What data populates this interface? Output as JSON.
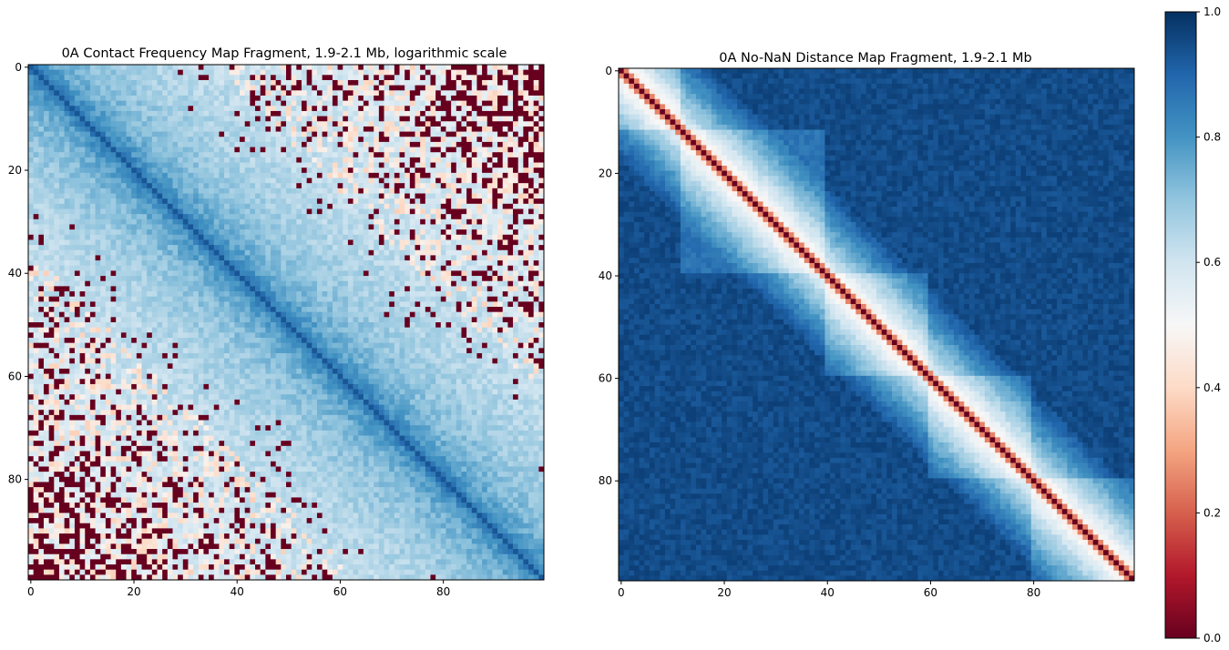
{
  "chart_data": [
    {
      "type": "heatmap",
      "title": "0A Contact Frequency Map Fragment, 1.9-2.1 Mb, logarithmic scale",
      "size": [
        100,
        100
      ],
      "xlim": [
        0,
        99
      ],
      "ylim": [
        0,
        99
      ],
      "x_ticks": [
        0,
        20,
        40,
        60,
        80
      ],
      "y_ticks": [
        0,
        20,
        40,
        60,
        80
      ],
      "colormap": "RdBu",
      "description_values": {
        "diagonal": 1.0,
        "near_diagonal_background": 0.6,
        "far_off_diagonal": "mix of 0.0 and 0.35-0.55"
      }
    },
    {
      "type": "heatmap",
      "title": "0A No-NaN Distance Map Fragment, 1.9-2.1 Mb",
      "size": [
        100,
        100
      ],
      "xlim": [
        0,
        99
      ],
      "ylim": [
        0,
        99
      ],
      "x_ticks": [
        0,
        20,
        40,
        60,
        80
      ],
      "y_ticks": [
        0,
        20,
        40,
        60,
        80
      ],
      "colormap": "RdBu",
      "description_values": {
        "diagonal": 0.0,
        "near_diagonal": 0.3,
        "background": 0.95
      }
    }
  ],
  "colorbar": {
    "min": 0.0,
    "max": 1.0,
    "ticks": [
      "0.0",
      "0.2",
      "0.4",
      "0.6",
      "0.8",
      "1.0"
    ]
  },
  "colors": {
    "rdbu_stops": [
      "#67001f",
      "#b2182b",
      "#d6604d",
      "#f4a582",
      "#fddbc7",
      "#f7f7f7",
      "#d1e5f0",
      "#92c5de",
      "#4393c3",
      "#2166ac",
      "#053061"
    ]
  }
}
